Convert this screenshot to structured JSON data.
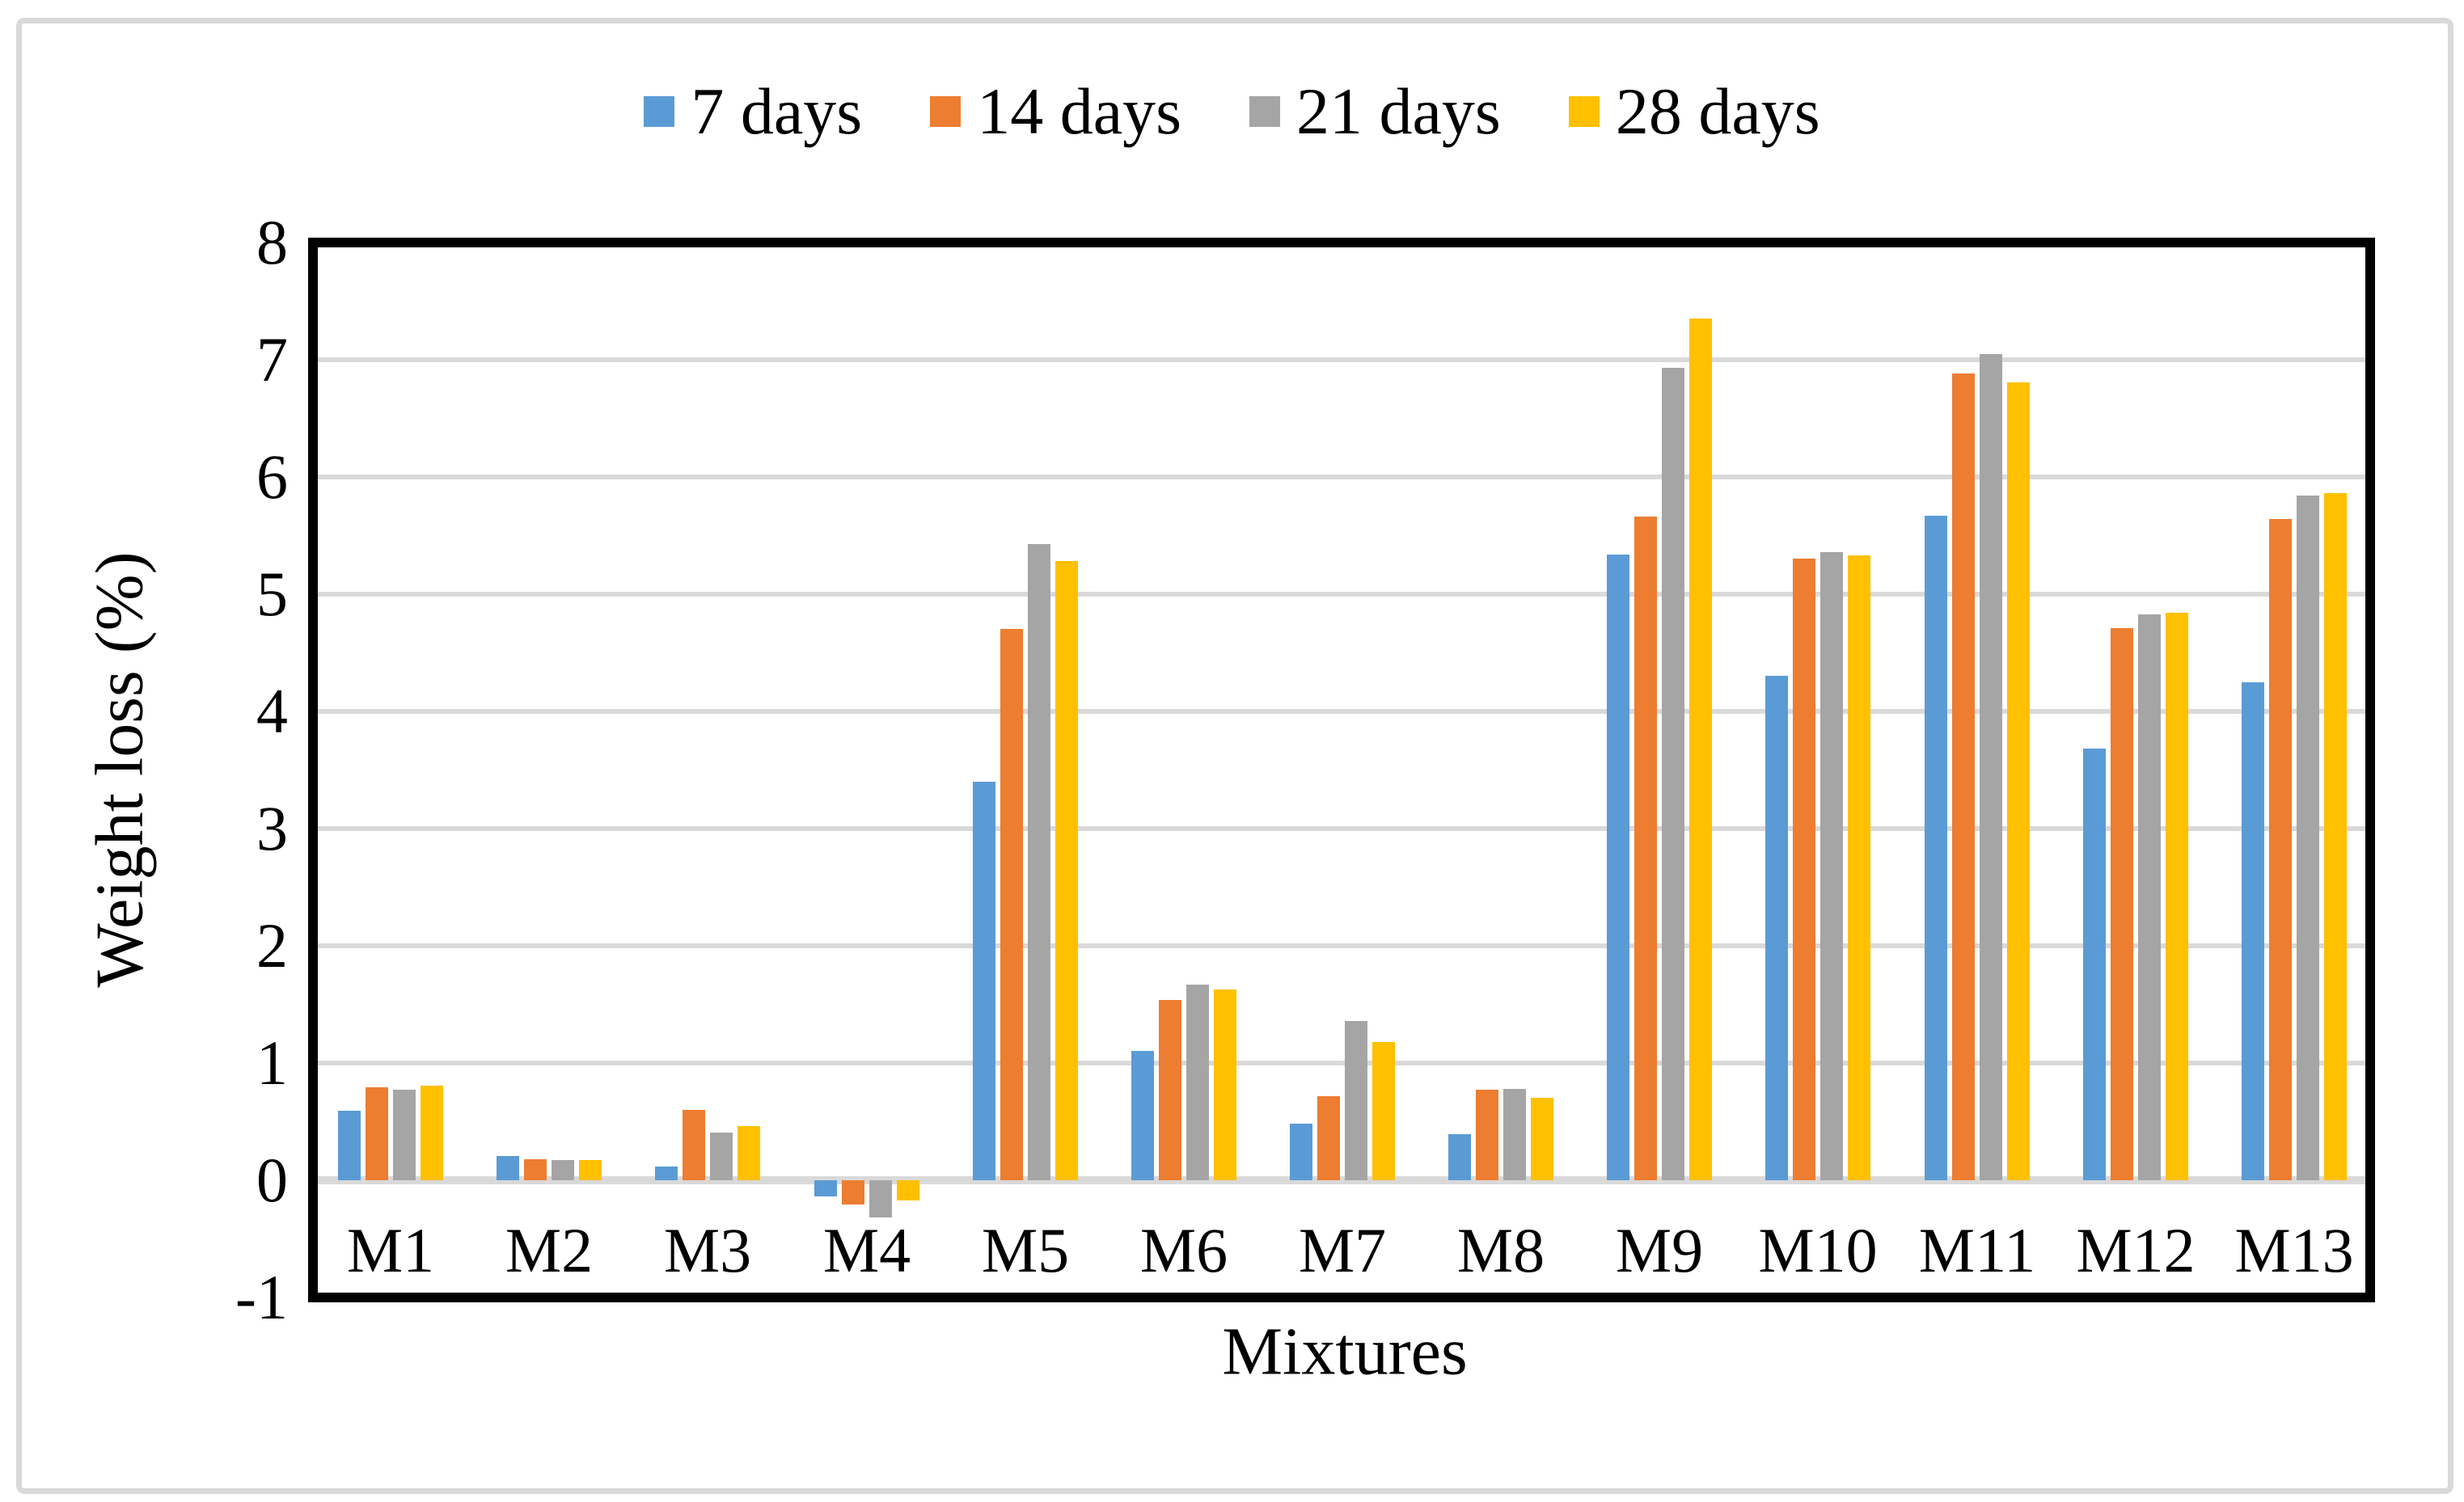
{
  "figure": {
    "background": "#FFFFFF",
    "frame_color": "#D9D9D9",
    "plot_border_color": "#000000"
  },
  "chart_data": {
    "type": "bar",
    "title": "",
    "xlabel": "Mixtures",
    "ylabel": "Weight loss (%)",
    "categories": [
      "M1",
      "M2",
      "M3",
      "M4",
      "M5",
      "M6",
      "M7",
      "M8",
      "M9",
      "M10",
      "M11",
      "M12",
      "M13"
    ],
    "series": [
      {
        "name": "7 days",
        "color": "#5B9BD5",
        "values": [
          0.59,
          0.21,
          0.12,
          -0.14,
          3.4,
          1.1,
          0.48,
          0.39,
          5.34,
          4.3,
          5.67,
          3.68,
          4.25
        ]
      },
      {
        "name": "14 days",
        "color": "#ED7D31",
        "values": [
          0.79,
          0.18,
          0.6,
          -0.21,
          4.7,
          1.54,
          0.72,
          0.77,
          5.66,
          5.3,
          6.88,
          4.71,
          5.64
        ]
      },
      {
        "name": "21 days",
        "color": "#A5A5A5",
        "values": [
          0.77,
          0.17,
          0.41,
          -0.32,
          5.43,
          1.67,
          1.36,
          0.78,
          6.93,
          5.36,
          7.05,
          4.83,
          5.84
        ]
      },
      {
        "name": "28 days",
        "color": "#FFC000",
        "values": [
          0.81,
          0.17,
          0.46,
          -0.17,
          5.28,
          1.63,
          1.18,
          0.7,
          7.35,
          5.33,
          6.81,
          4.84,
          5.86
        ]
      }
    ],
    "ylim": [
      -1,
      8
    ],
    "yticks": [
      "8",
      "7",
      "6",
      "5",
      "4",
      "3",
      "2",
      "1",
      "0",
      "-1"
    ],
    "ytick_values": [
      8,
      7,
      6,
      5,
      4,
      3,
      2,
      1,
      0,
      -1
    ],
    "grid": "horizontal",
    "gridline_color": "#D9D9D9",
    "zero_line_color": "#D9D9D9",
    "legend_position": "top-center"
  }
}
